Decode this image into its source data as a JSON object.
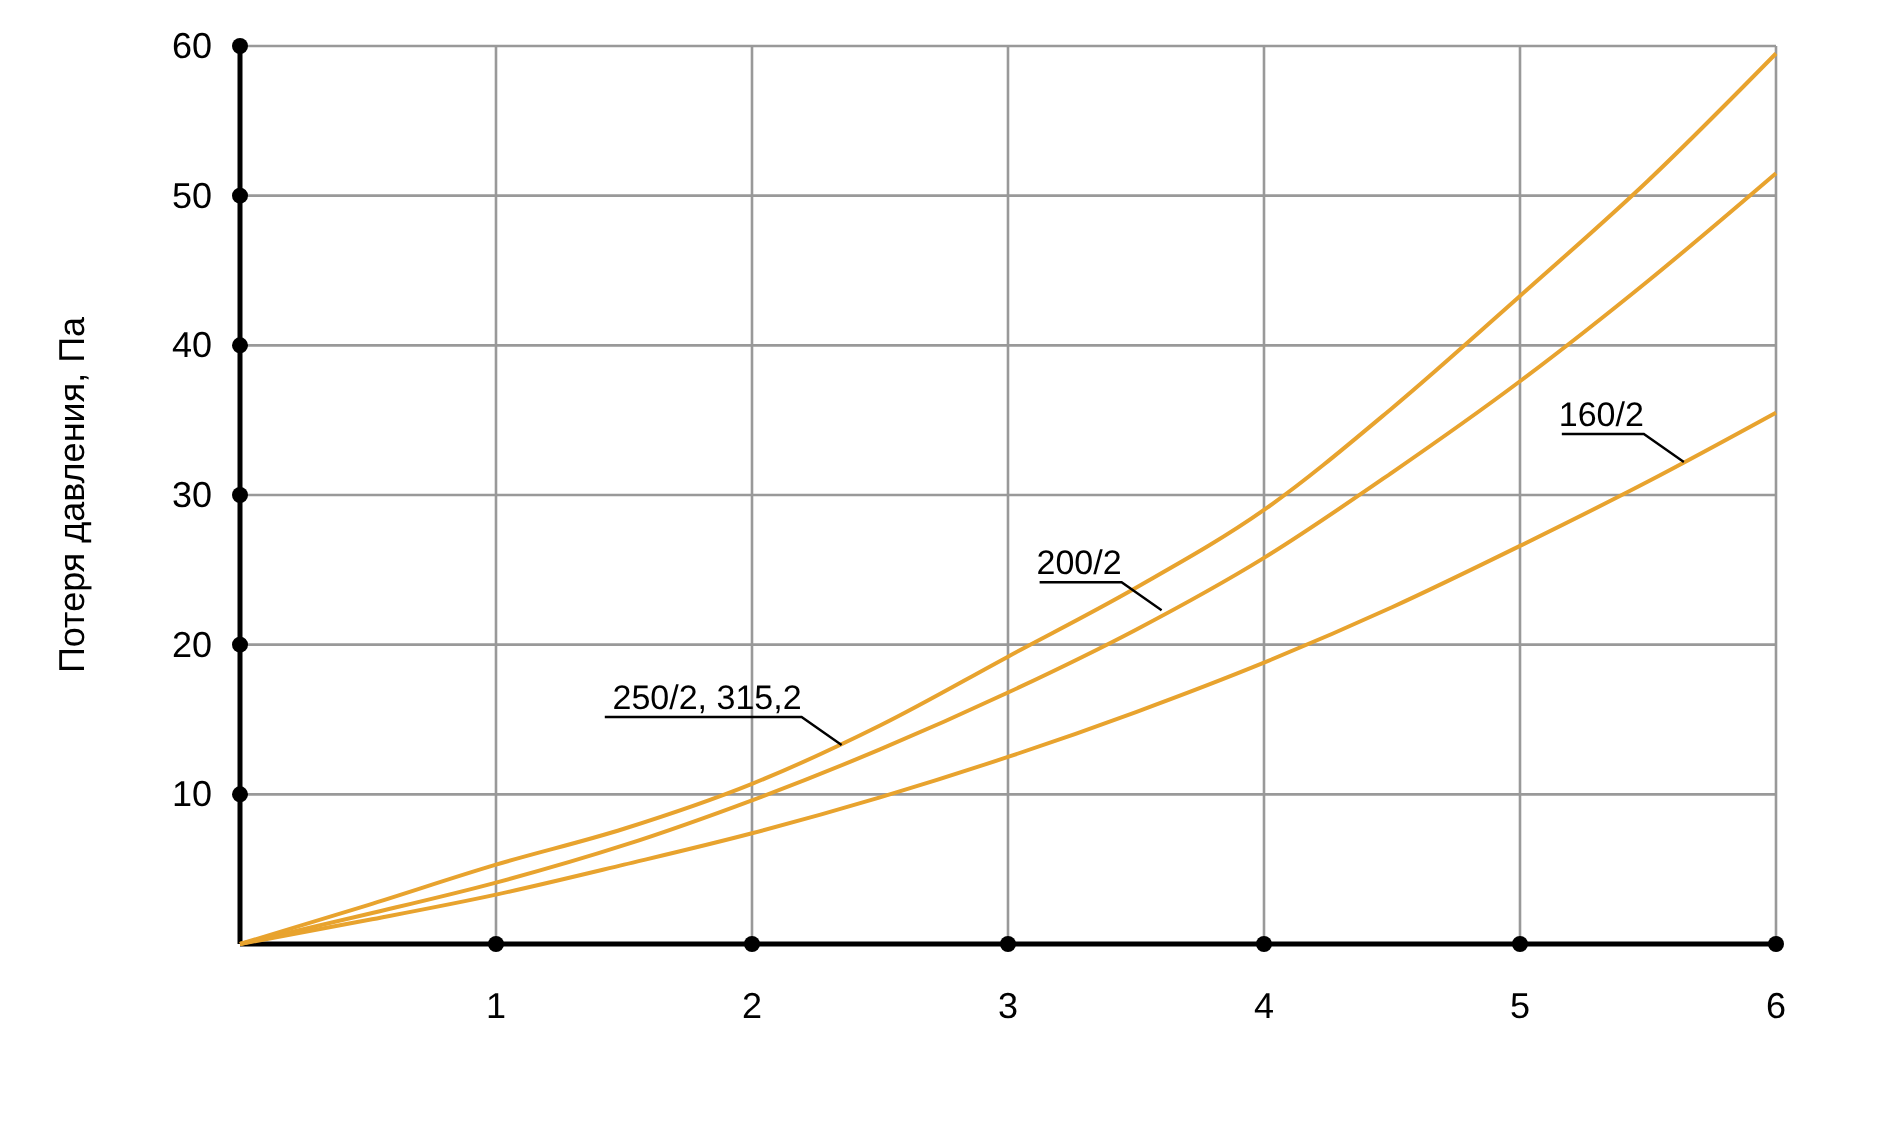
{
  "chart_data": {
    "type": "line",
    "ylabel": "Потеря давления, Па",
    "xlim": [
      0,
      6
    ],
    "ylim": [
      0,
      60
    ],
    "xticks": [
      1,
      2,
      3,
      4,
      5,
      6
    ],
    "yticks": [
      10,
      20,
      30,
      40,
      50,
      60
    ],
    "grid": true,
    "marker": "none",
    "line_style": "solid",
    "x": [
      0,
      0.5,
      1,
      1.5,
      2,
      2.5,
      3,
      3.5,
      4,
      4.5,
      5,
      5.5,
      6
    ],
    "series": [
      {
        "color": "#e8a32e",
        "values": [
          0,
          2.6,
          5.3,
          7.7,
          10.7,
          14.6,
          19.2,
          23.8,
          29.0,
          35.8,
          43.3,
          51,
          59.5
        ]
      },
      {
        "color": "#e8a32e",
        "values": [
          0,
          2.0,
          4.1,
          6.6,
          9.6,
          13.0,
          16.8,
          21.0,
          25.8,
          31.5,
          37.6,
          44.3,
          51.5
        ]
      },
      {
        "color": "#e8a32e",
        "values": [
          0,
          1.6,
          3.3,
          5.3,
          7.4,
          9.8,
          12.5,
          15.5,
          18.8,
          22.5,
          26.6,
          30.9,
          35.5
        ]
      }
    ],
    "annotations": [
      {
        "text": "250/2, 315,2",
        "x": 2.35,
        "y": 13.3
      },
      {
        "text": "200/2",
        "x": 3.6,
        "y": 22.3
      },
      {
        "text": "160/2",
        "x": 5.64,
        "y": 32.2
      }
    ]
  }
}
